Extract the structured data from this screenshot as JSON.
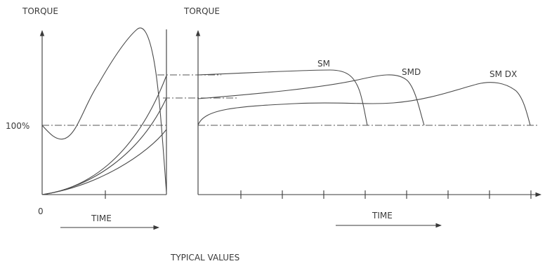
{
  "left_chart": {
    "y_axis_label": "TORQUE",
    "ref_label": "100%",
    "origin_label": "0",
    "x_axis_label": "TIME"
  },
  "right_chart": {
    "y_axis_label": "TORQUE",
    "x_axis_label": "TIME",
    "curve_labels": [
      "SM",
      "SMD",
      "SM DX"
    ]
  },
  "caption": "TYPICAL VALUES"
}
